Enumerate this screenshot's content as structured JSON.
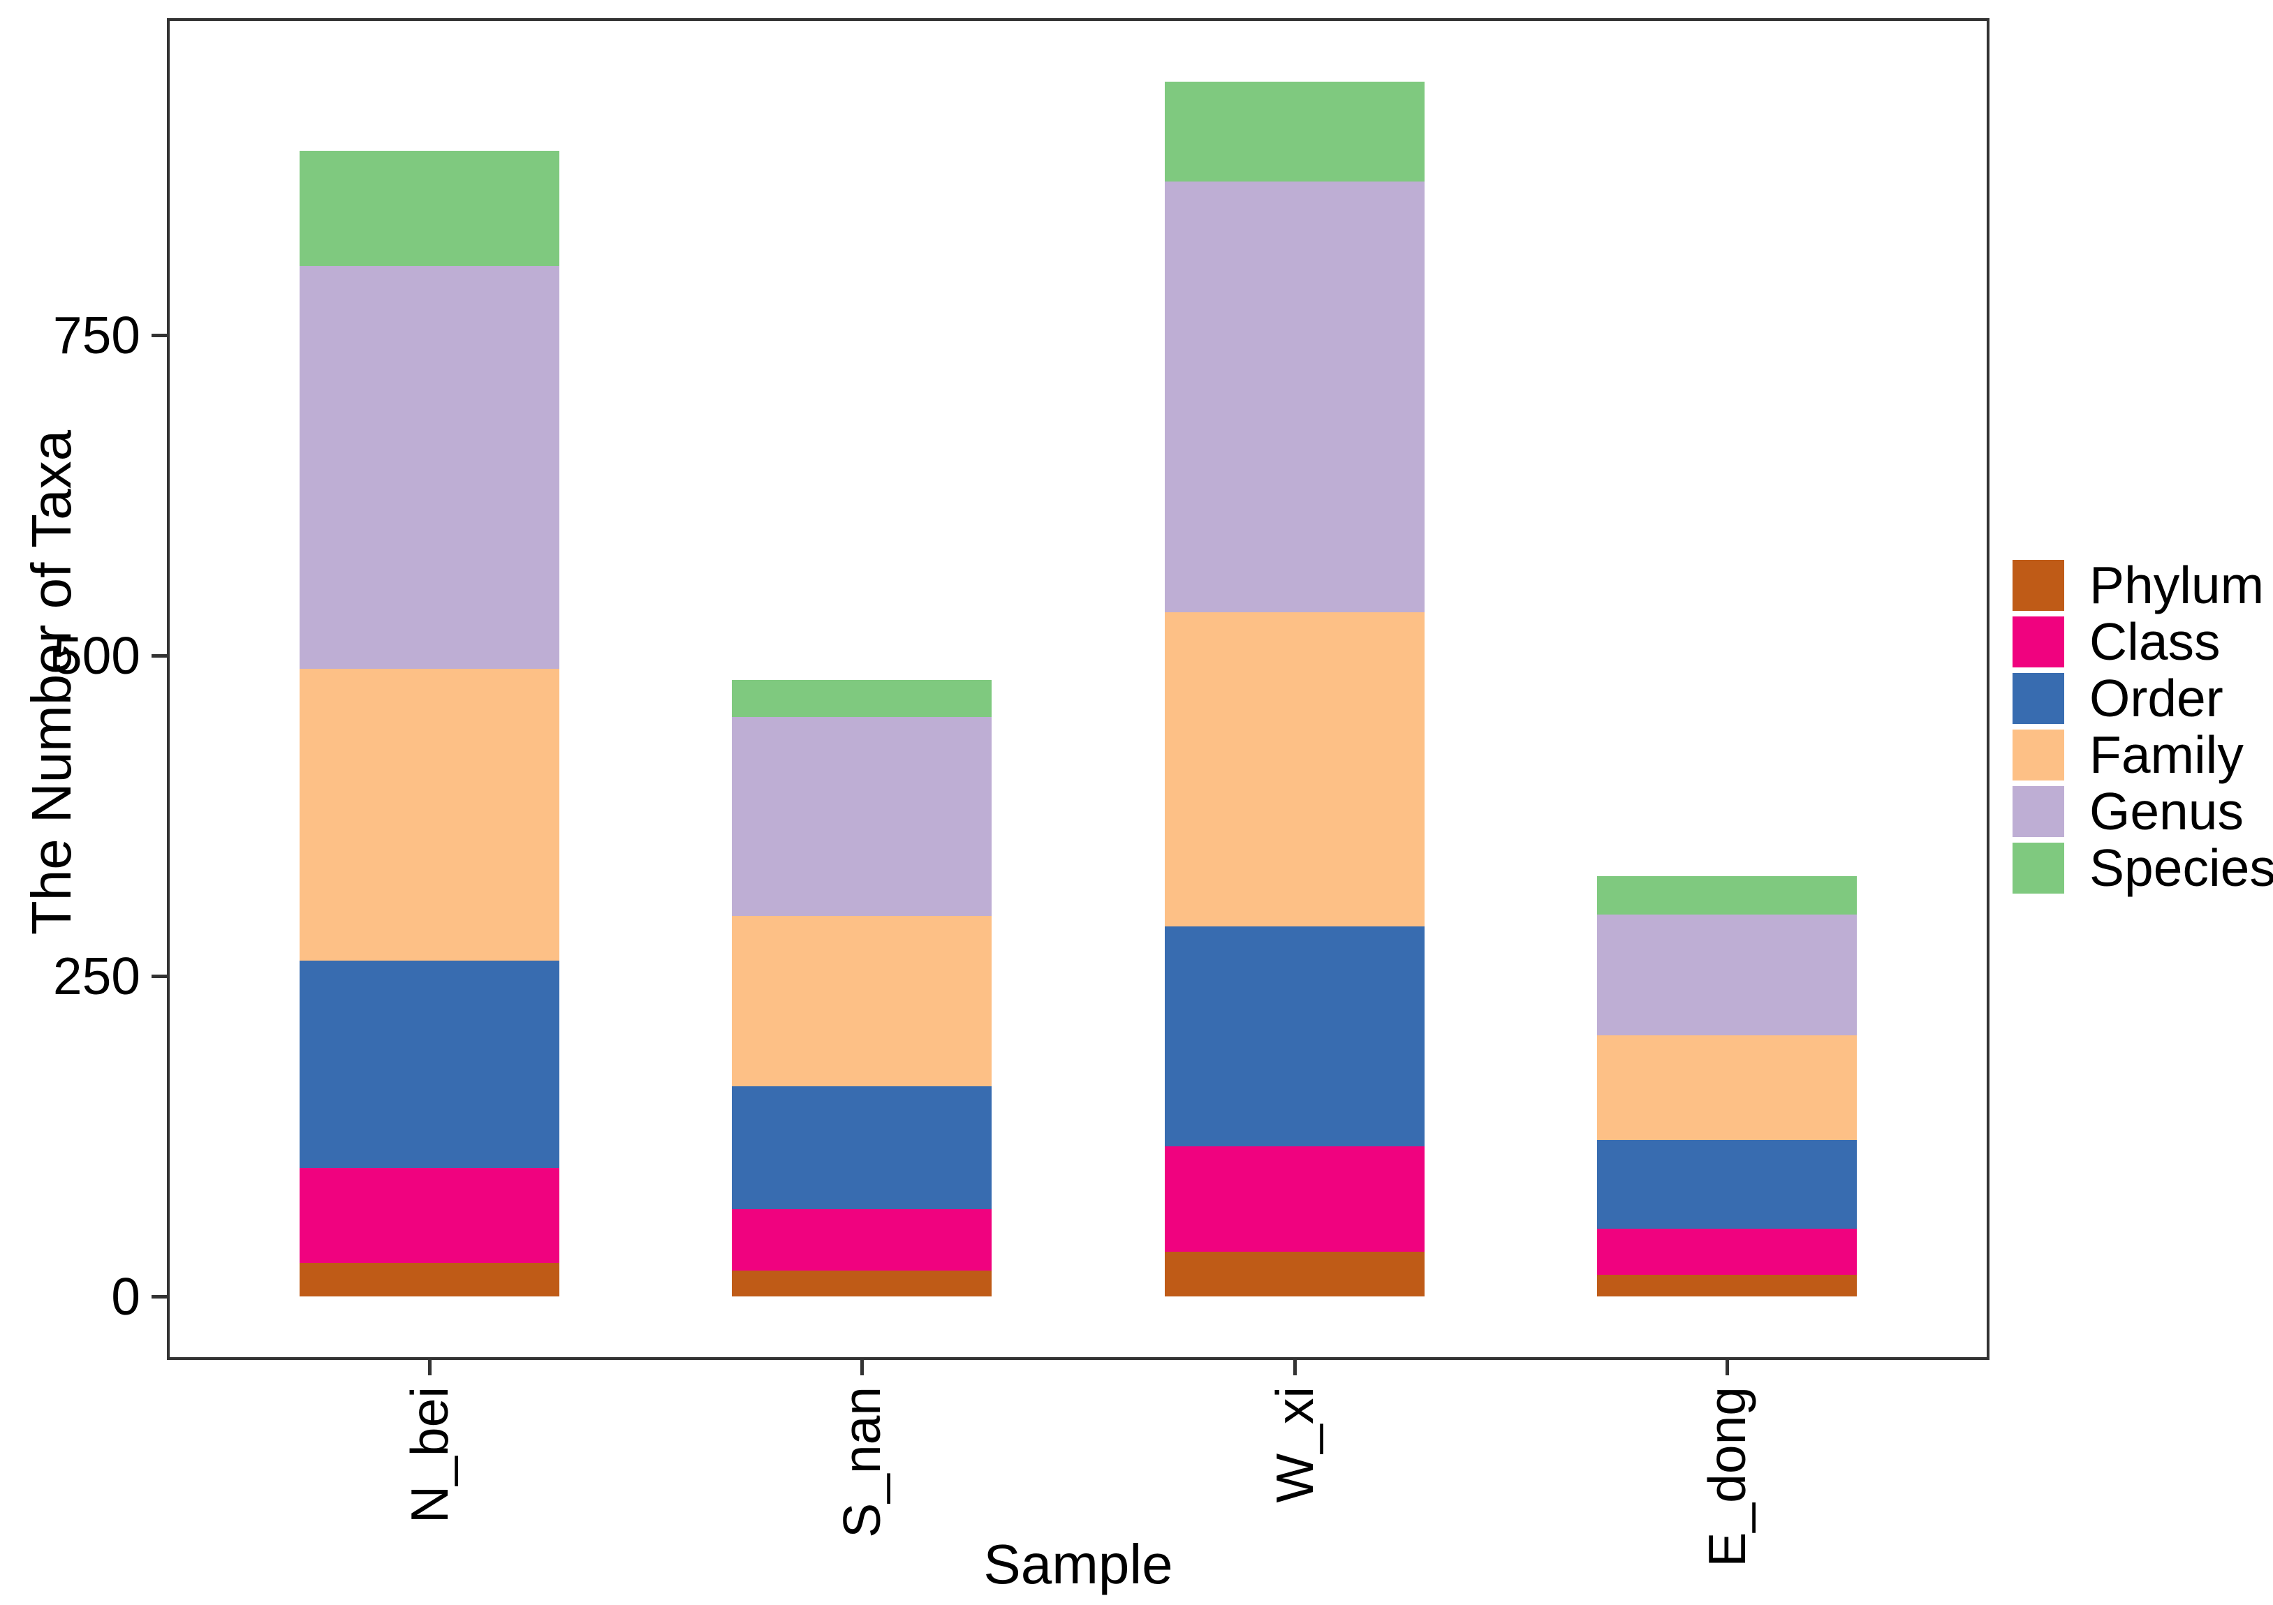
{
  "chart_data": {
    "type": "bar",
    "stacked": true,
    "title": "",
    "xlabel": "Sample",
    "ylabel": "The Number of Taxa",
    "categories": [
      "N_bei",
      "S_nan",
      "W_xi",
      "E_dong"
    ],
    "series": [
      {
        "name": "Phylum",
        "color": "#BF5B17",
        "values": [
          26,
          20,
          35,
          17
        ]
      },
      {
        "name": "Class",
        "color": "#F0027F",
        "values": [
          74,
          48,
          82,
          36
        ]
      },
      {
        "name": "Order",
        "color": "#386CB0",
        "values": [
          162,
          96,
          172,
          69
        ]
      },
      {
        "name": "Family",
        "color": "#FDC086",
        "values": [
          228,
          133,
          245,
          82
        ]
      },
      {
        "name": "Genus",
        "color": "#BEAED4",
        "values": [
          314,
          155,
          336,
          94
        ]
      },
      {
        "name": "Species",
        "color": "#7FC97F",
        "values": [
          90,
          29,
          78,
          30
        ]
      }
    ],
    "totals": [
      894,
      481,
      948,
      328
    ],
    "yticks": [
      0,
      250,
      500,
      750
    ],
    "y_expansion": 0.05,
    "bar_width_fraction": 0.6,
    "grid": false,
    "legend_position": "right",
    "legend_labels": [
      "Phylum",
      "Class",
      "Order",
      "Family",
      "Genus",
      "Species"
    ],
    "colors": {
      "panel_border": "#333333",
      "tick": "#333333",
      "text": "#000000",
      "background": "#ffffff"
    }
  }
}
